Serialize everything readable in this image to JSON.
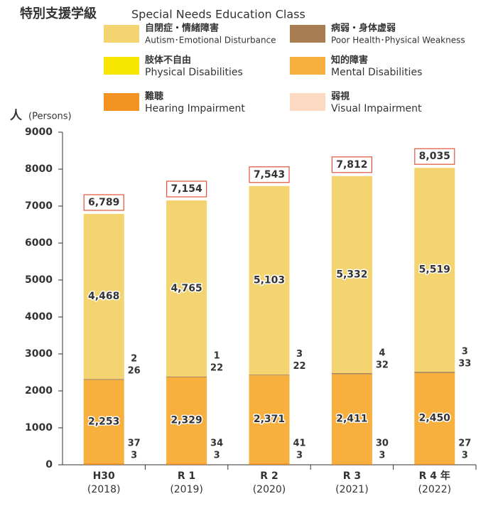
{
  "chart_data": {
    "type": "stacked_bar",
    "title": "特別支援学級",
    "subtitle": "Special Needs Education Class",
    "y_label": "人",
    "y_label_en": "(Persons)",
    "categories": [
      "H30",
      "R 1",
      "R 2",
      "R 3",
      "R 4 年"
    ],
    "category_years": [
      "(2018)",
      "(2019)",
      "(2020)",
      "(2021)",
      "(2022)"
    ],
    "ylim": [
      0,
      9000
    ],
    "yticks": [
      0,
      1000,
      2000,
      3000,
      4000,
      5000,
      6000,
      7000,
      8000,
      9000
    ],
    "series": [
      {
        "name": "弱視",
        "name_en": "Visual Impairment",
        "color": "#fbd9c2",
        "values": [
          3,
          3,
          3,
          3,
          3
        ]
      },
      {
        "name": "難聴",
        "name_en": "Hearing Impairment",
        "color": "#f39322",
        "values": [
          37,
          34,
          41,
          30,
          27
        ]
      },
      {
        "name": "知的障害",
        "name_en": "Mental Disabilities",
        "color": "#f7af3e",
        "values": [
          2253,
          2329,
          2371,
          2411,
          2450
        ],
        "value_labels": [
          "2,253",
          "2,329",
          "2,371",
          "2,411",
          "2,450"
        ]
      },
      {
        "name": "肢体不自由",
        "name_en": "Physical Disabilities",
        "color": "#f7e600",
        "values": [
          2,
          1,
          3,
          4,
          3
        ]
      },
      {
        "name": "病弱・身体虚弱",
        "name_en": "Poor Health･Physical Weakness",
        "color": "#a97d52",
        "values": [
          26,
          22,
          22,
          32,
          33
        ]
      },
      {
        "name": "自閉症・情緒障害",
        "name_en": "Autism･Emotional Disturbance",
        "color": "#f3d470",
        "values": [
          4468,
          4765,
          5103,
          5332,
          5519
        ],
        "value_labels": [
          "4,468",
          "4,765",
          "5,103",
          "5,332",
          "5,519"
        ]
      }
    ],
    "totals": [
      6789,
      7154,
      7543,
      7812,
      8035
    ],
    "total_labels": [
      "6,789",
      "7,154",
      "7,543",
      "7,812",
      "8,035"
    ]
  }
}
